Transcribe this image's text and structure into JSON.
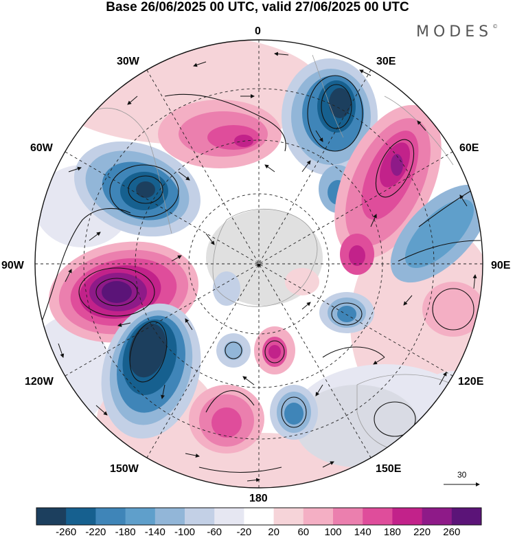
{
  "title": "Base 26/06/2025 00 UTC, valid 27/06/2025 00 UTC",
  "brand": "MODES",
  "brand_mark": "©",
  "longitude_labels": {
    "lon_0": "0",
    "lon_30e": "30E",
    "lon_60e": "60E",
    "lon_90e": "90E",
    "lon_120e": "120E",
    "lon_150e": "150E",
    "lon_180": "180",
    "lon_150w": "150W",
    "lon_120w": "120W",
    "lon_90w": "90W",
    "lon_60w": "60W",
    "lon_30w": "30W"
  },
  "reference_vector": {
    "value": "30"
  },
  "colorbar": {
    "colors": [
      "#1c3f5e",
      "#16608f",
      "#3f85b8",
      "#5f9fcb",
      "#92b6d8",
      "#c3d0e6",
      "#e6e7f2",
      "#ffffff",
      "#f6d4d9",
      "#f4afc4",
      "#eb7fae",
      "#df4d9b",
      "#c2228a",
      "#8e1a88",
      "#5b1478"
    ],
    "ticks": [
      "-260",
      "-220",
      "-180",
      "-140",
      "-100",
      "-60",
      "-20",
      "20",
      "60",
      "100",
      "140",
      "180",
      "220",
      "260"
    ]
  }
}
